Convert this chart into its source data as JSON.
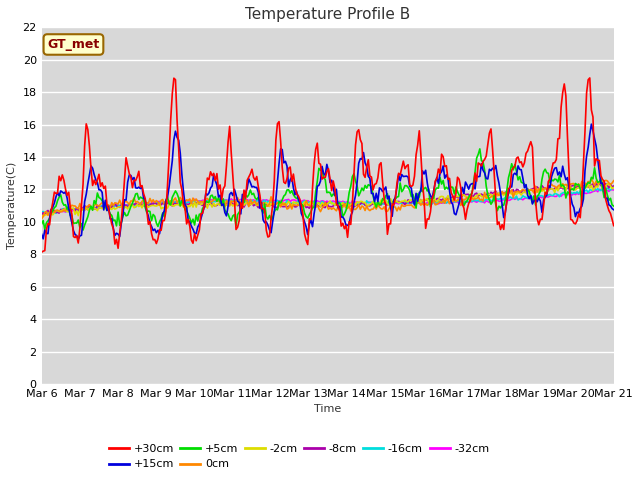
{
  "title": "Temperature Profile B",
  "xlabel": "Time",
  "ylabel": "Temperature(C)",
  "ylim": [
    0,
    22
  ],
  "yticks": [
    0,
    2,
    4,
    6,
    8,
    10,
    12,
    14,
    16,
    18,
    20,
    22
  ],
  "x_labels": [
    "Mar 6",
    "Mar 7",
    "Mar 8",
    "Mar 9",
    "Mar 10",
    "Mar 11",
    "Mar 12",
    "Mar 13",
    "Mar 14",
    "Mar 15",
    "Mar 16",
    "Mar 17",
    "Mar 18",
    "Mar 19",
    "Mar 20",
    "Mar 21"
  ],
  "annotation_text": "GT_met",
  "annotation_bg": "#ffffcc",
  "annotation_border": "#996600",
  "series_colors": {
    "+30cm": "#ff0000",
    "+15cm": "#0000dd",
    "+5cm": "#00dd00",
    "0cm": "#ff8800",
    "-2cm": "#dddd00",
    "-8cm": "#aa00aa",
    "-16cm": "#00dddd",
    "-32cm": "#ff00ff"
  },
  "fig_bg": "#ffffff",
  "plot_bg": "#d8d8d8",
  "grid_color": "#ffffff",
  "title_fontsize": 11,
  "axis_fontsize": 8,
  "tick_fontsize": 8,
  "legend_fontsize": 8
}
